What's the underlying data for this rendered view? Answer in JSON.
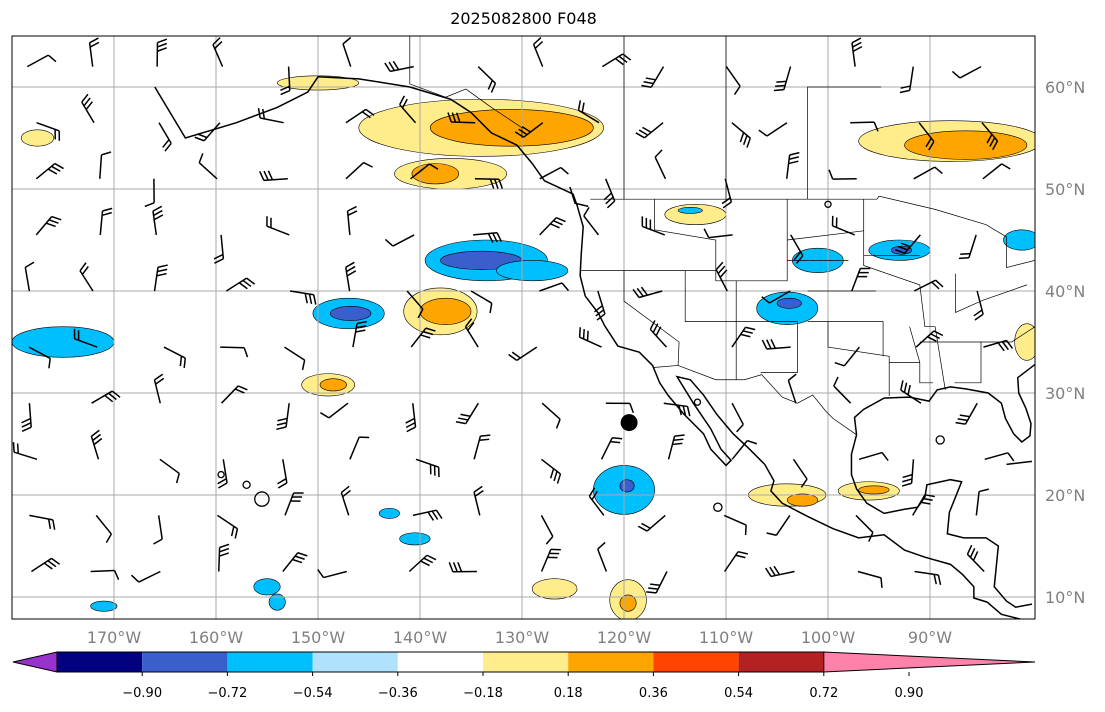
{
  "title": "2025082800 F048",
  "map": {
    "lon_range": [
      -180,
      -79.7
    ],
    "lat_range": [
      8,
      65
    ],
    "lon_ticks": [
      {
        "v": -170,
        "label": "170°W"
      },
      {
        "v": -160,
        "label": "160°W"
      },
      {
        "v": -150,
        "label": "150°W"
      },
      {
        "v": -140,
        "label": "140°W"
      },
      {
        "v": -130,
        "label": "130°W"
      },
      {
        "v": -120,
        "label": "120°W"
      },
      {
        "v": -110,
        "label": "110°W"
      },
      {
        "v": -100,
        "label": "100°W"
      },
      {
        "v": -90,
        "label": "90°W"
      }
    ],
    "lat_ticks": [
      {
        "v": 60,
        "label": "60°N"
      },
      {
        "v": 50,
        "label": "50°N"
      },
      {
        "v": 40,
        "label": "40°N"
      },
      {
        "v": 30,
        "label": "30°N"
      },
      {
        "v": 20,
        "label": "20°N"
      },
      {
        "v": 10,
        "label": "10°N"
      }
    ],
    "marker": {
      "lon": -119.5,
      "lat": 27.1
    }
  },
  "colorbar": {
    "colors": [
      "#9932cc",
      "#000080",
      "#3a5fcd",
      "#00bfff",
      "#b0e2ff",
      "#ffffff",
      "#ffec8b",
      "#ffa500",
      "#ff4500",
      "#b22222",
      "#ff82ab"
    ],
    "labels": [
      "−0.90",
      "−0.72",
      "−0.54",
      "−0.36",
      "−0.18",
      "0.18",
      "0.36",
      "0.54",
      "0.72",
      "0.90"
    ]
  },
  "chart_data": {
    "type": "heatmap",
    "title": "2025082800 F048",
    "levels": [
      -0.9,
      -0.72,
      -0.54,
      -0.36,
      -0.18,
      0.18,
      0.36,
      0.54,
      0.72,
      0.9
    ],
    "anomaly_regions": [
      {
        "lon": -134,
        "lat": 56,
        "rlon": 12,
        "rlat": 2.8,
        "level": 0.18
      },
      {
        "lon": -131,
        "lat": 56,
        "rlon": 8,
        "rlat": 1.8,
        "level": 0.36
      },
      {
        "lon": -137,
        "lat": 51.5,
        "rlon": 5.5,
        "rlat": 1.5,
        "level": 0.18
      },
      {
        "lon": -138.5,
        "lat": 51.5,
        "rlon": 2.3,
        "rlat": 1,
        "level": 0.36
      },
      {
        "lon": -150,
        "lat": 60.4,
        "rlon": 4,
        "rlat": 0.7,
        "level": 0.18
      },
      {
        "lon": -177.5,
        "lat": 55,
        "rlon": 1.6,
        "rlat": 0.8,
        "level": 0.18
      },
      {
        "lon": -138,
        "lat": 38,
        "rlon": 3.6,
        "rlat": 2.3,
        "level": 0.18
      },
      {
        "lon": -137.5,
        "lat": 38,
        "rlon": 2.5,
        "rlat": 1.3,
        "level": 0.36
      },
      {
        "lon": -149,
        "lat": 30.8,
        "rlon": 2.6,
        "rlat": 1.1,
        "level": 0.18
      },
      {
        "lon": -148.5,
        "lat": 30.8,
        "rlon": 1.3,
        "rlat": 0.6,
        "level": 0.36
      },
      {
        "lon": -113,
        "lat": 47.5,
        "rlon": 3,
        "rlat": 1,
        "level": 0.18
      },
      {
        "lon": -88,
        "lat": 54.7,
        "rlon": 9,
        "rlat": 2,
        "level": 0.18
      },
      {
        "lon": -86.5,
        "lat": 54.3,
        "rlon": 6,
        "rlat": 1.4,
        "level": 0.36
      },
      {
        "lon": -104,
        "lat": 20,
        "rlon": 3.8,
        "rlat": 1.1,
        "level": 0.18
      },
      {
        "lon": -102.5,
        "lat": 19.5,
        "rlon": 1.5,
        "rlat": 0.6,
        "level": 0.36
      },
      {
        "lon": -96,
        "lat": 20.4,
        "rlon": 3,
        "rlat": 0.9,
        "level": 0.18
      },
      {
        "lon": -95.5,
        "lat": 20.5,
        "rlon": 1.5,
        "rlat": 0.4,
        "level": 0.36
      },
      {
        "lon": -126.8,
        "lat": 10.8,
        "rlon": 2.2,
        "rlat": 1,
        "level": 0.18
      },
      {
        "lon": -119.6,
        "lat": 9.7,
        "rlon": 1.8,
        "rlat": 2,
        "level": 0.18
      },
      {
        "lon": -119.6,
        "lat": 9.4,
        "rlon": 0.8,
        "rlat": 0.8,
        "level": 0.36
      },
      {
        "lon": -80.5,
        "lat": 35,
        "rlon": 1.2,
        "rlat": 1.8,
        "level": 0.18
      },
      {
        "lon": -133.5,
        "lat": 43,
        "rlon": 6,
        "rlat": 2,
        "level": -0.36
      },
      {
        "lon": -134,
        "lat": 43,
        "rlon": 4,
        "rlat": 0.9,
        "level": -0.54
      },
      {
        "lon": -129,
        "lat": 42,
        "rlon": 3.5,
        "rlat": 1,
        "level": -0.36
      },
      {
        "lon": -147,
        "lat": 37.8,
        "rlon": 3.5,
        "rlat": 1.5,
        "level": -0.36
      },
      {
        "lon": -146.8,
        "lat": 37.8,
        "rlon": 2,
        "rlat": 0.7,
        "level": -0.54
      },
      {
        "lon": -175,
        "lat": 35,
        "rlon": 5,
        "rlat": 1.5,
        "level": -0.36
      },
      {
        "lon": -120,
        "lat": 20.5,
        "rlon": 3,
        "rlat": 2.4,
        "level": -0.36
      },
      {
        "lon": -119.7,
        "lat": 20.9,
        "rlon": 0.7,
        "rlat": 0.6,
        "level": -0.54
      },
      {
        "lon": -104,
        "lat": 38.3,
        "rlon": 3,
        "rlat": 1.6,
        "level": -0.36
      },
      {
        "lon": -103.8,
        "lat": 38.8,
        "rlon": 1.2,
        "rlat": 0.5,
        "level": -0.54
      },
      {
        "lon": -93,
        "lat": 44,
        "rlon": 3,
        "rlat": 1,
        "level": -0.36
      },
      {
        "lon": -92.8,
        "lat": 44,
        "rlon": 1,
        "rlat": 0.4,
        "level": -0.54
      },
      {
        "lon": -101,
        "lat": 43,
        "rlon": 2.5,
        "rlat": 1.2,
        "level": -0.36
      },
      {
        "lon": -81,
        "lat": 45,
        "rlon": 1.8,
        "rlat": 1,
        "level": -0.36
      },
      {
        "lon": -155,
        "lat": 11,
        "rlon": 1.3,
        "rlat": 0.8,
        "level": -0.36
      },
      {
        "lon": -154,
        "lat": 9.5,
        "rlon": 0.8,
        "rlat": 0.8,
        "level": -0.36
      },
      {
        "lon": -171,
        "lat": 9.1,
        "rlon": 1.3,
        "rlat": 0.5,
        "level": -0.36
      },
      {
        "lon": -140.5,
        "lat": 15.7,
        "rlon": 1.5,
        "rlat": 0.6,
        "level": -0.36
      },
      {
        "lon": -143,
        "lat": 18.2,
        "rlon": 1,
        "rlat": 0.5,
        "level": -0.36
      },
      {
        "lon": -113.5,
        "lat": 47.9,
        "rlon": 1.2,
        "rlat": 0.3,
        "level": -0.36
      }
    ]
  }
}
